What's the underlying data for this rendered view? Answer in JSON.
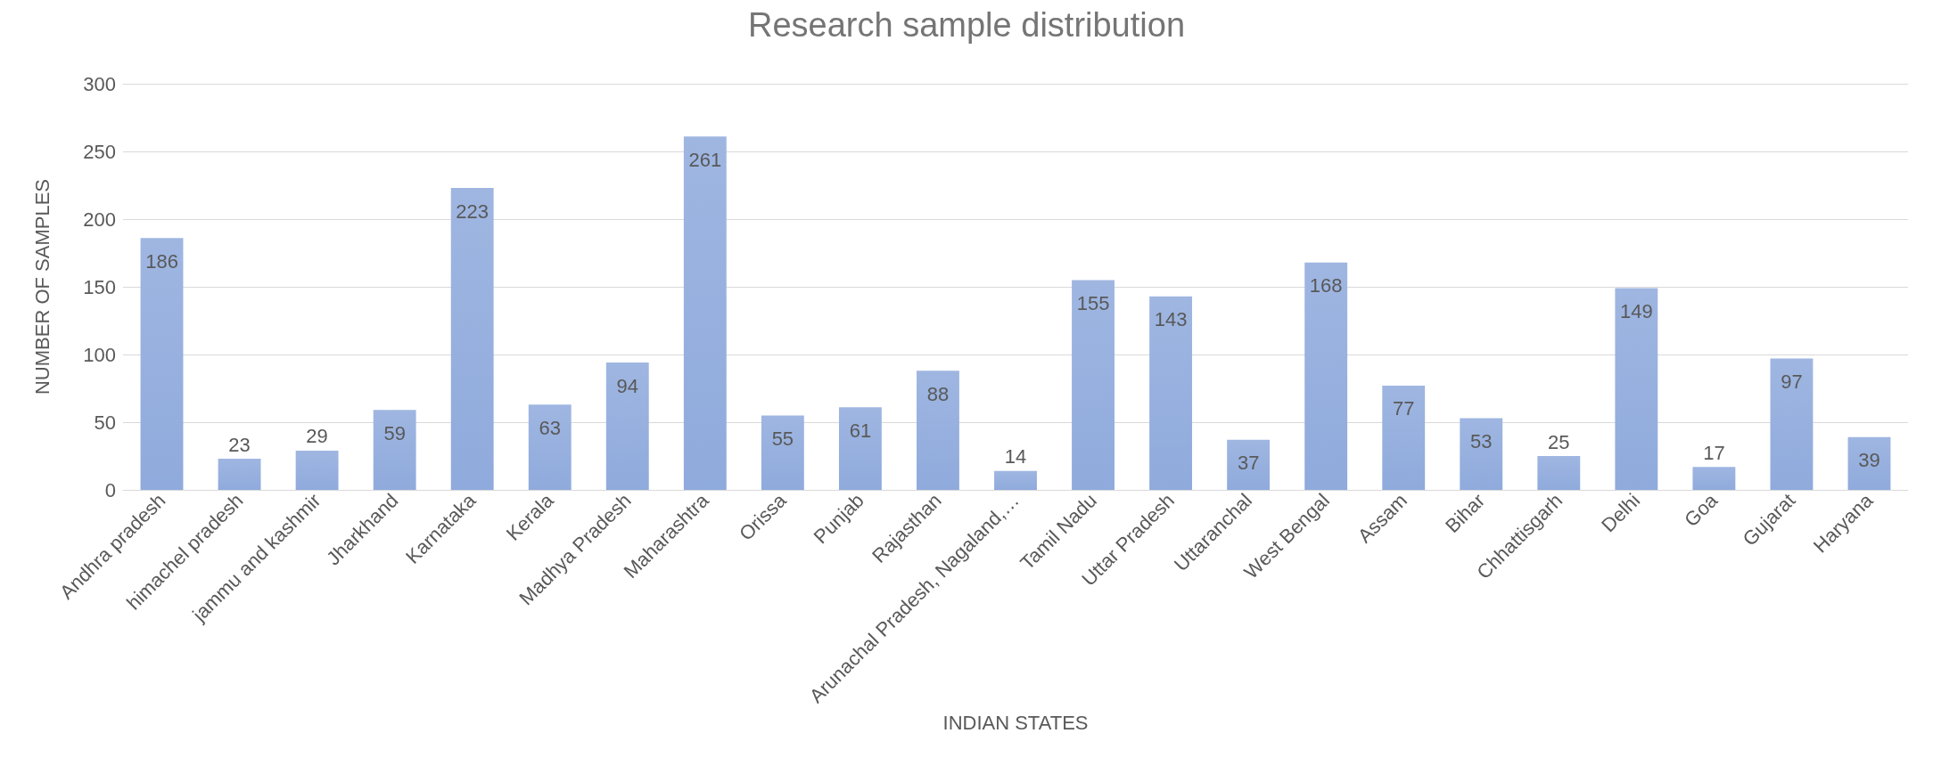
{
  "chart_data": {
    "type": "bar",
    "title": "Research sample distribution",
    "xlabel": "INDIAN STATES",
    "ylabel": "NUMBER OF SAMPLES",
    "categories": [
      "Andhra pradesh",
      "himachel pradesh",
      "jammu and kashmir",
      "Jharkhand",
      "Karnataka",
      "Kerala",
      "Madhya Pradesh",
      "Maharashtra",
      "Orissa",
      "Punjab",
      "Rajasthan",
      "Arunachal Pradesh, Nagaland,…",
      "Tamil Nadu",
      "Uttar Pradesh",
      "Uttaranchal",
      "West Bengal",
      "Assam",
      "Bihar",
      "Chhattisgarh",
      "Delhi",
      "Goa",
      "Gujarat",
      "Haryana"
    ],
    "values": [
      186,
      23,
      29,
      59,
      223,
      63,
      94,
      261,
      55,
      61,
      88,
      14,
      155,
      143,
      37,
      168,
      77,
      53,
      25,
      149,
      17,
      97,
      39
    ],
    "color": "#8faadc",
    "ylim": [
      0,
      300
    ],
    "yticks": [
      0,
      50,
      100,
      150,
      200,
      250,
      300
    ],
    "grid": "y",
    "data_labels": true
  }
}
